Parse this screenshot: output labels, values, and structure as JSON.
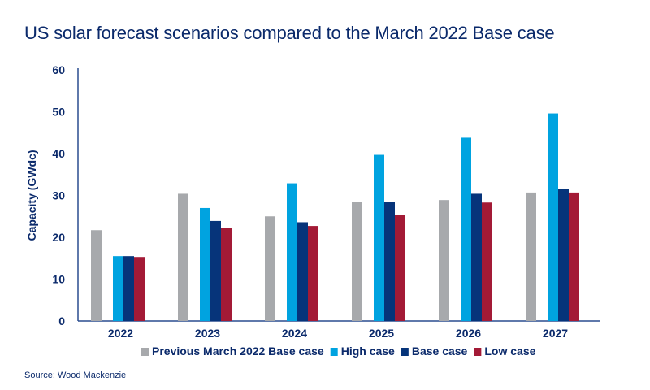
{
  "chart_data": {
    "type": "bar",
    "title": "US solar forecast scenarios compared to the March 2022 Base case",
    "ylabel": "Capacity (GWdc)",
    "xlabel": "",
    "ylim": [
      0,
      60
    ],
    "yticks": [
      "0",
      "10",
      "20",
      "30",
      "40",
      "50",
      "60"
    ],
    "grid": false,
    "legend_position": "bottom",
    "categories": [
      "2022",
      "2023",
      "2024",
      "2025",
      "2026",
      "2027"
    ],
    "series": [
      {
        "name": "Previous March 2022 Base case",
        "color": "#a7a9ac",
        "values": [
          21.7,
          30.4,
          25.0,
          28.4,
          28.9,
          30.7
        ]
      },
      {
        "name": "High case",
        "color": "#00a3e0",
        "values": [
          15.5,
          27.0,
          32.9,
          39.7,
          43.8,
          49.6
        ]
      },
      {
        "name": "Base case",
        "color": "#06347a",
        "values": [
          15.5,
          23.9,
          23.6,
          28.4,
          30.4,
          31.5
        ]
      },
      {
        "name": "Low case",
        "color": "#a31a36",
        "values": [
          15.3,
          22.3,
          22.7,
          25.4,
          28.3,
          30.7
        ]
      }
    ]
  },
  "source": "Source: Wood Mackenzie"
}
